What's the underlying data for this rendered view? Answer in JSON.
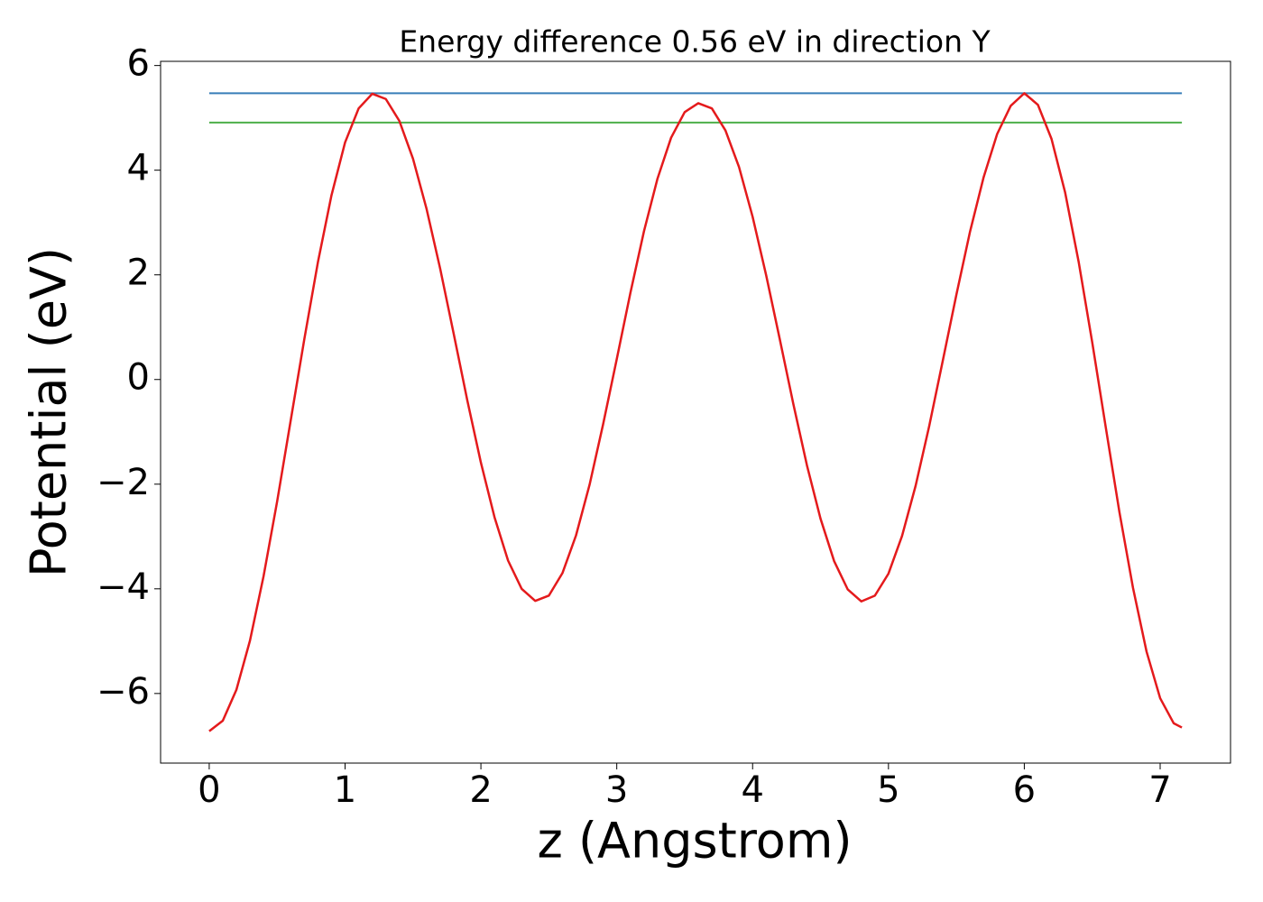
{
  "chart_data": {
    "type": "line",
    "title": "Energy difference 0.56 eV in direction Y",
    "xlabel": "z (Angstrom)",
    "ylabel": "Potential (eV)",
    "x": [
      0,
      0.1,
      0.2,
      0.3,
      0.4,
      0.5,
      0.6,
      0.7,
      0.8,
      0.9,
      1.0,
      1.1,
      1.2,
      1.3,
      1.4,
      1.5,
      1.6,
      1.7,
      1.8,
      1.9,
      2.0,
      2.1,
      2.2,
      2.3,
      2.4,
      2.5,
      2.6,
      2.7,
      2.8,
      2.9,
      3.0,
      3.1,
      3.2,
      3.3,
      3.4,
      3.5,
      3.6,
      3.7,
      3.8,
      3.9,
      4.0,
      4.1,
      4.2,
      4.3,
      4.4,
      4.5,
      4.6,
      4.7,
      4.8,
      4.9,
      5.0,
      5.1,
      5.2,
      5.3,
      5.4,
      5.5,
      5.6,
      5.7,
      5.8,
      5.9,
      6.0,
      6.1,
      6.2,
      6.3,
      6.4,
      6.5,
      6.6,
      6.7,
      6.8,
      6.9,
      7.0,
      7.1,
      7.16
    ],
    "series": [
      {
        "color": "#e41a1c",
        "values": [
          -6.72,
          -6.52,
          -5.93,
          -4.99,
          -3.76,
          -2.33,
          -0.78,
          0.77,
          2.24,
          3.52,
          4.53,
          5.18,
          5.46,
          5.36,
          4.94,
          4.22,
          3.26,
          2.12,
          0.87,
          -0.4,
          -1.59,
          -2.63,
          -3.46,
          -4.0,
          -4.23,
          -4.13,
          -3.7,
          -2.98,
          -2.01,
          -0.85,
          0.39,
          1.65,
          2.83,
          3.84,
          4.62,
          5.11,
          5.28,
          5.18,
          4.76,
          4.06,
          3.11,
          1.99,
          0.77,
          -0.47,
          -1.64,
          -2.66,
          -3.47,
          -4.01,
          -4.24,
          -4.13,
          -3.71,
          -2.99,
          -2.03,
          -0.89,
          0.36,
          1.62,
          2.82,
          3.86,
          4.69,
          5.23,
          5.47,
          5.25,
          4.6,
          3.58,
          2.25,
          0.71,
          -0.92,
          -2.53,
          -3.98,
          -5.2,
          -6.09,
          -6.57,
          -6.65
        ]
      }
    ],
    "hlines": [
      {
        "value": 5.47,
        "color": "#377eb8"
      },
      {
        "value": 4.91,
        "color": "#4daf4a"
      }
    ],
    "xlim": [
      -0.358,
      7.518
    ],
    "ylim": [
      -7.33,
      6.08
    ],
    "xticks": [
      0,
      1,
      2,
      3,
      4,
      5,
      6,
      7
    ],
    "yticks": [
      {
        "value": -6,
        "label": "−6"
      },
      {
        "value": -4,
        "label": "−4"
      },
      {
        "value": -2,
        "label": "−2"
      },
      0,
      2,
      4,
      6
    ]
  }
}
